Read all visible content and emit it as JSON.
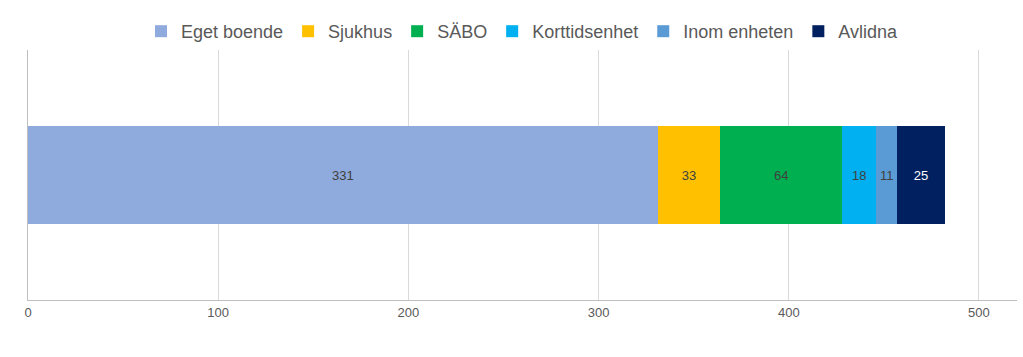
{
  "chart_data": {
    "type": "bar",
    "orientation": "horizontal",
    "stacked": true,
    "categories": [
      null
    ],
    "series": [
      {
        "name": "Eget boende",
        "color": "#8faadc",
        "values": [
          331
        ]
      },
      {
        "name": "Sjukhus",
        "color": "#ffc000",
        "values": [
          33
        ]
      },
      {
        "name": "SÄBO",
        "color": "#00b050",
        "values": [
          64
        ]
      },
      {
        "name": "Korttidsenhet",
        "color": "#00b0f0",
        "values": [
          18
        ]
      },
      {
        "name": "Inom enheten",
        "color": "#5b9bd5",
        "values": [
          11
        ]
      },
      {
        "name": "Avlidna",
        "color": "#002060",
        "values": [
          25
        ]
      }
    ],
    "xlim": [
      0,
      520
    ],
    "xticks": [
      0,
      100,
      200,
      300,
      400,
      500
    ],
    "grid": true,
    "data_labels": true,
    "legend": "top",
    "tick_labels": "x"
  }
}
